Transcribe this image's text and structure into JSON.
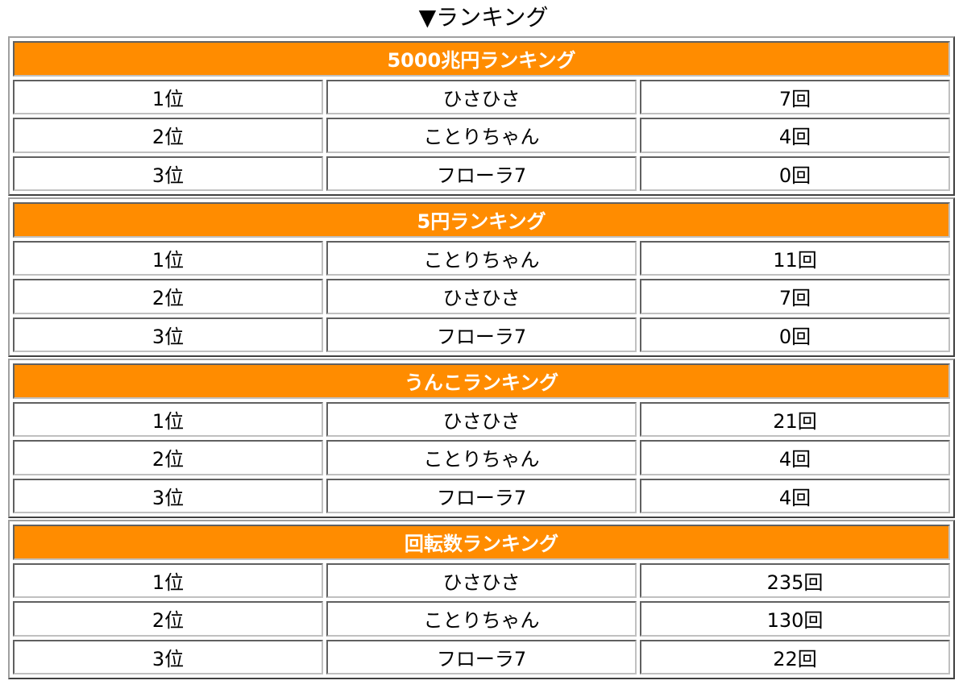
{
  "page_title": "▼ランキング",
  "colors": {
    "header_bg": "#ff8c00",
    "header_text": "#ffffff"
  },
  "rankings": [
    {
      "title": "5000兆円ランキング",
      "rows": [
        {
          "rank": "1位",
          "name": "ひさひさ",
          "count": "7回"
        },
        {
          "rank": "2位",
          "name": "ことりちゃん",
          "count": "4回"
        },
        {
          "rank": "3位",
          "name": "フローラ7",
          "count": "0回"
        }
      ]
    },
    {
      "title": "5円ランキング",
      "rows": [
        {
          "rank": "1位",
          "name": "ことりちゃん",
          "count": "11回"
        },
        {
          "rank": "2位",
          "name": "ひさひさ",
          "count": "7回"
        },
        {
          "rank": "3位",
          "name": "フローラ7",
          "count": "0回"
        }
      ]
    },
    {
      "title": "うんこランキング",
      "rows": [
        {
          "rank": "1位",
          "name": "ひさひさ",
          "count": "21回"
        },
        {
          "rank": "2位",
          "name": "ことりちゃん",
          "count": "4回"
        },
        {
          "rank": "3位",
          "name": "フローラ7",
          "count": "4回"
        }
      ]
    },
    {
      "title": "回転数ランキング",
      "rows": [
        {
          "rank": "1位",
          "name": "ひさひさ",
          "count": "235回"
        },
        {
          "rank": "2位",
          "name": "ことりちゃん",
          "count": "130回"
        },
        {
          "rank": "3位",
          "name": "フローラ7",
          "count": "22回"
        }
      ]
    }
  ]
}
